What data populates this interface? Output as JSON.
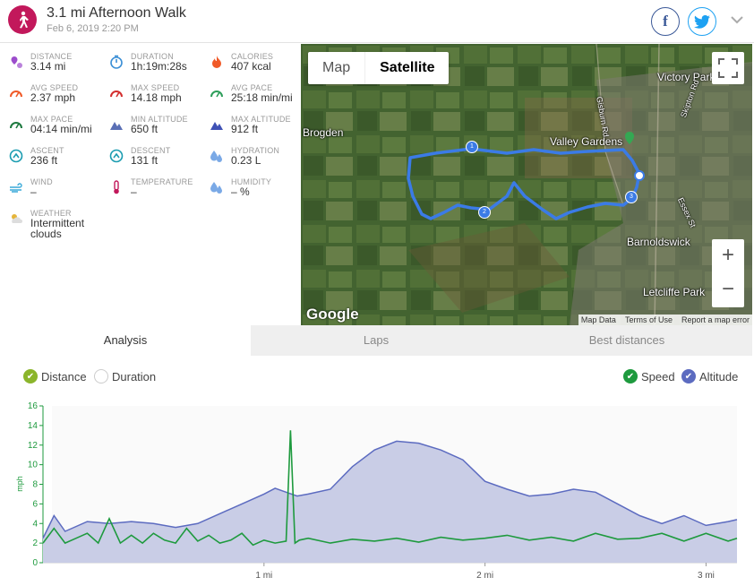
{
  "header": {
    "title": "3.1 mi Afternoon Walk",
    "subtitle": "Feb 6, 2019 2:20 PM",
    "facebook_label": "f"
  },
  "stats": [
    {
      "label": "DISTANCE",
      "value": "3.14 mi",
      "icon": "distance-icon",
      "color": "#9c4dcc"
    },
    {
      "label": "DURATION",
      "value": "1h:19m:28s",
      "icon": "stopwatch-icon",
      "color": "#3b8fd6"
    },
    {
      "label": "CALORIES",
      "value": "407 kcal",
      "icon": "flame-icon",
      "color": "#f05a28"
    },
    {
      "label": "AVG SPEED",
      "value": "2.37 mph",
      "icon": "speedometer-icon",
      "color": "#f05a28"
    },
    {
      "label": "MAX SPEED",
      "value": "14.18 mph",
      "icon": "speedometer-icon",
      "color": "#d32f2f"
    },
    {
      "label": "AVG PACE",
      "value": "25:18 min/mi",
      "icon": "pace-icon",
      "color": "#2e9e5a"
    },
    {
      "label": "MAX PACE",
      "value": "04:14 min/mi",
      "icon": "pace-icon",
      "color": "#1e7a40"
    },
    {
      "label": "MIN ALTITUDE",
      "value": "650 ft",
      "icon": "mountain-icon",
      "color": "#5a6fb5"
    },
    {
      "label": "MAX ALTITUDE",
      "value": "912 ft",
      "icon": "mountain-icon",
      "color": "#3f51b5"
    },
    {
      "label": "ASCENT",
      "value": "236 ft",
      "icon": "ascent-icon",
      "color": "#1a9cb0"
    },
    {
      "label": "DESCENT",
      "value": "131 ft",
      "icon": "descent-icon",
      "color": "#1a9cb0"
    },
    {
      "label": "HYDRATION",
      "value": "0.23 L",
      "icon": "drops-icon",
      "color": "#7aa9e6"
    },
    {
      "label": "WIND",
      "value": "–",
      "icon": "wind-icon",
      "color": "#39a9d9"
    },
    {
      "label": "TEMPERATURE",
      "value": "–",
      "icon": "thermometer-icon",
      "color": "#c2185b"
    },
    {
      "label": "HUMIDITY",
      "value": "– %",
      "icon": "humidity-icon",
      "color": "#7aa9e6"
    },
    {
      "label": "WEATHER",
      "value": "Intermittent clouds",
      "icon": "weather-icon",
      "color": "#e5b53a"
    }
  ],
  "map": {
    "map_button": "Map",
    "satellite_button": "Satellite",
    "zoom_in": "+",
    "zoom_out": "−",
    "labels": [
      "Victory Park",
      "Brogden",
      "Valley Gardens",
      "Barnoldswick",
      "Letcliffe Park"
    ],
    "road_labels": [
      "Gisburn Rd",
      "Skipton Rd",
      "Essex St"
    ],
    "google": "Google",
    "attribution": [
      "Map Data",
      "Terms of Use",
      "Report a map error"
    ],
    "markers": [
      "1",
      "2",
      "3"
    ]
  },
  "tabs": [
    {
      "label": "Analysis",
      "active": true
    },
    {
      "label": "Laps",
      "active": false
    },
    {
      "label": "Best distances",
      "active": false
    }
  ],
  "chart_toggles": {
    "distance": "Distance",
    "duration": "Duration",
    "speed": "Speed",
    "altitude": "Altitude"
  },
  "chart_data": {
    "type": "line",
    "ylabel": "mph",
    "ylim": [
      0,
      16
    ],
    "yticks": [
      0,
      2,
      4,
      6,
      8,
      10,
      12,
      14,
      16
    ],
    "xlim": [
      0,
      3.14
    ],
    "xticks": [
      {
        "value": 1,
        "label": "1 mi"
      },
      {
        "value": 2,
        "label": "2 mi"
      },
      {
        "value": 3,
        "label": "3 mi"
      }
    ],
    "series": [
      {
        "name": "Altitude",
        "kind": "area",
        "color": "#5c6bc0",
        "x": [
          0,
          0.05,
          0.1,
          0.2,
          0.3,
          0.4,
          0.5,
          0.6,
          0.7,
          0.8,
          0.9,
          1.0,
          1.05,
          1.1,
          1.15,
          1.2,
          1.3,
          1.4,
          1.5,
          1.6,
          1.7,
          1.8,
          1.9,
          2.0,
          2.1,
          2.2,
          2.3,
          2.4,
          2.5,
          2.6,
          2.7,
          2.8,
          2.9,
          3.0,
          3.1,
          3.14
        ],
        "values": [
          2.5,
          4.8,
          3.2,
          4.2,
          4.0,
          4.2,
          4.0,
          3.6,
          4.0,
          5.0,
          6.0,
          7.0,
          7.6,
          7.2,
          6.8,
          7.0,
          7.5,
          9.8,
          11.5,
          12.4,
          12.2,
          11.5,
          10.5,
          8.3,
          7.5,
          6.8,
          7.0,
          7.5,
          7.2,
          6.0,
          4.8,
          4.0,
          4.8,
          3.8,
          4.2,
          4.4
        ]
      },
      {
        "name": "Speed",
        "kind": "line",
        "color": "#1e9a3e",
        "x": [
          0,
          0.05,
          0.1,
          0.15,
          0.2,
          0.25,
          0.3,
          0.35,
          0.4,
          0.45,
          0.5,
          0.55,
          0.6,
          0.65,
          0.7,
          0.75,
          0.8,
          0.85,
          0.9,
          0.95,
          1.0,
          1.05,
          1.1,
          1.12,
          1.14,
          1.16,
          1.2,
          1.3,
          1.4,
          1.5,
          1.6,
          1.7,
          1.8,
          1.9,
          2.0,
          2.1,
          2.2,
          2.3,
          2.4,
          2.5,
          2.6,
          2.7,
          2.8,
          2.9,
          3.0,
          3.1,
          3.14
        ],
        "values": [
          2.0,
          3.5,
          2.0,
          2.5,
          3.0,
          2.0,
          4.5,
          2.0,
          2.8,
          2.0,
          3.0,
          2.3,
          2.0,
          3.5,
          2.2,
          2.8,
          2.0,
          2.3,
          3.0,
          1.8,
          2.3,
          2.0,
          2.2,
          13.5,
          2.0,
          2.3,
          2.5,
          2.0,
          2.4,
          2.2,
          2.5,
          2.1,
          2.6,
          2.3,
          2.5,
          2.8,
          2.3,
          2.6,
          2.2,
          3.0,
          2.4,
          2.5,
          3.0,
          2.2,
          3.0,
          2.2,
          2.5
        ]
      }
    ]
  }
}
